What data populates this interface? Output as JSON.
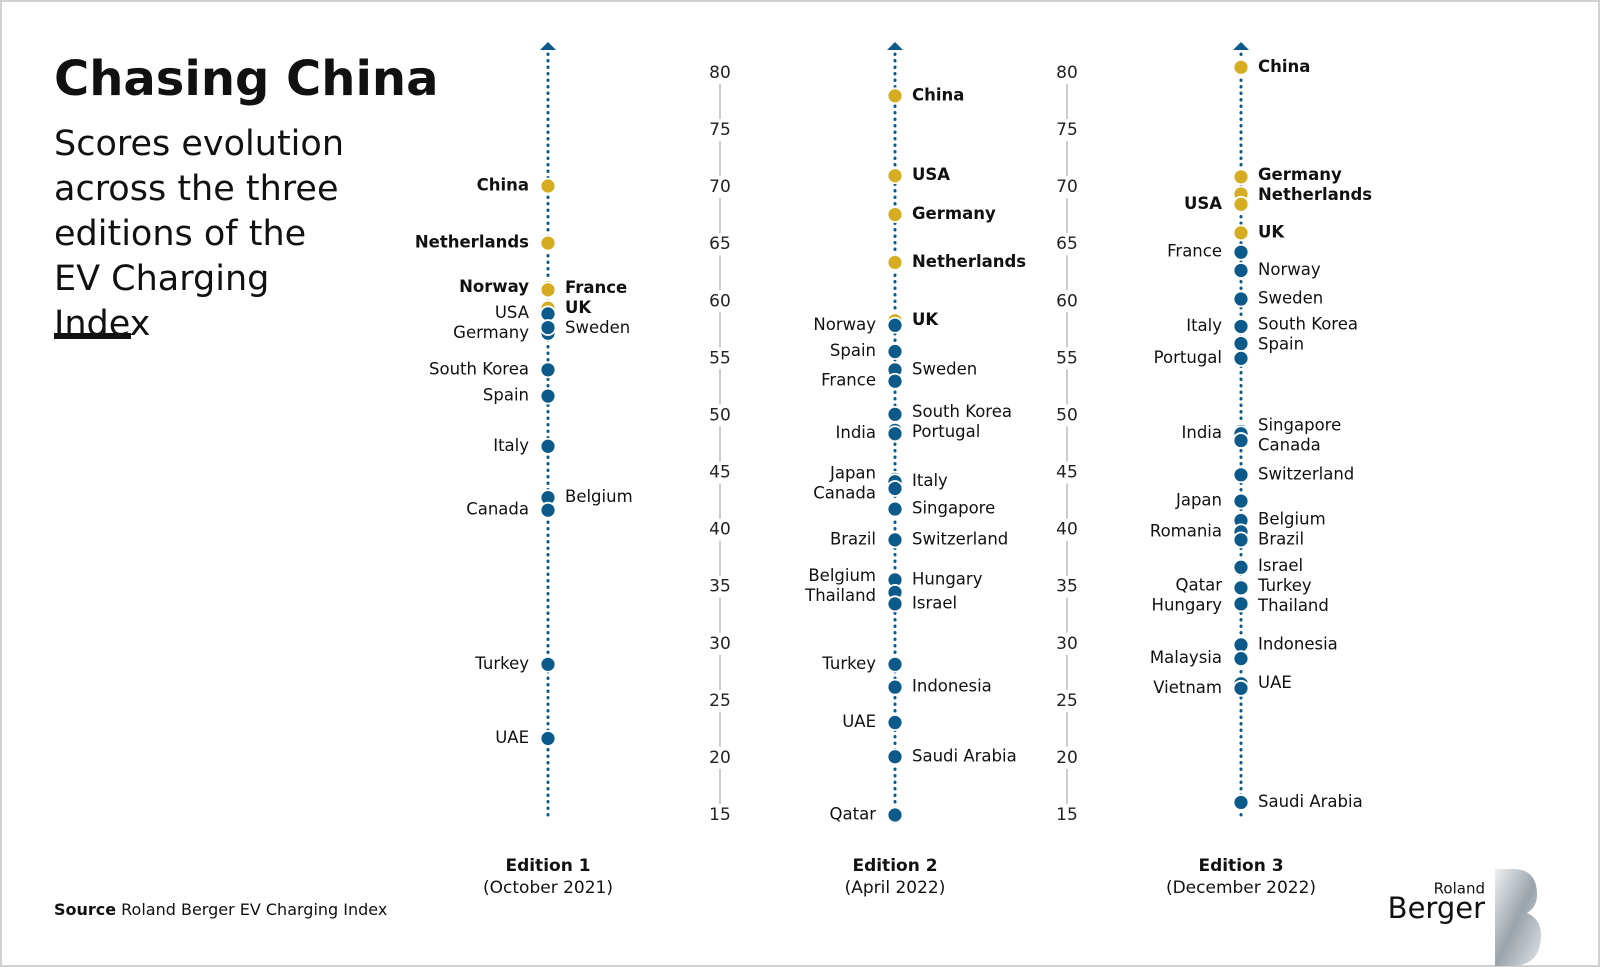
{
  "chart_data": {
    "type": "strip",
    "title": "Chasing China",
    "subtitle": "Scores evolution across the three editions of the EV Charging Index",
    "source_label": "Source",
    "source": "Roland Berger EV Charging Index",
    "ylim": [
      15,
      80
    ],
    "yticks": [
      15,
      20,
      25,
      30,
      35,
      40,
      45,
      50,
      55,
      60,
      65,
      70,
      75,
      80
    ],
    "highlight_color": "#d6ad22",
    "series": [
      {
        "name": "Edition 1",
        "subtitle": "(October 2021)",
        "categories": [
          "China",
          "Netherlands",
          "Norway",
          "France",
          "UK",
          "USA",
          "Germany",
          "Sweden",
          "South Korea",
          "Spain",
          "Italy",
          "Belgium",
          "Canada",
          "Turkey",
          "UAE"
        ],
        "values": [
          70.1,
          65.1,
          61.2,
          61.0,
          59.4,
          58.9,
          57.2,
          57.7,
          54.0,
          51.7,
          47.3,
          42.8,
          41.7,
          28.2,
          21.7
        ],
        "colors": [
          "#d6ad22",
          "#d6ad22",
          "#d6ad22",
          "#d6ad22",
          "#d6ad22",
          "#0b5a8a",
          "#0b5a8a",
          "#0b5a8a",
          "#0b5a8a",
          "#0b5a8a",
          "#0b5a8a",
          "#0b5a8a",
          "#0b5a8a",
          "#0b5a8a",
          "#0b5a8a"
        ],
        "sides": [
          "left",
          "left",
          "left",
          "right",
          "right",
          "left",
          "left",
          "right",
          "left",
          "left",
          "left",
          "right",
          "left",
          "left",
          "left"
        ]
      },
      {
        "name": "Edition 2",
        "subtitle": "(April 2022)",
        "categories": [
          "China",
          "USA",
          "Germany",
          "Netherlands",
          "UK",
          "Norway",
          "Spain",
          "Sweden",
          "France",
          "South Korea",
          "Portugal",
          "India",
          "Japan",
          "Italy",
          "Canada",
          "Singapore",
          "Brazil",
          "Switzerland",
          "Belgium",
          "Hungary",
          "Thailand",
          "Israel",
          "Turkey",
          "Indonesia",
          "UAE",
          "Saudi Arabia",
          "Qatar"
        ],
        "values": [
          78.0,
          71.0,
          67.6,
          63.4,
          58.3,
          57.9,
          55.6,
          54.0,
          53.0,
          50.1,
          48.7,
          48.4,
          44.4,
          44.2,
          43.6,
          41.8,
          39.1,
          39.1,
          35.5,
          35.6,
          34.5,
          33.5,
          28.2,
          26.2,
          23.1,
          20.1,
          15.0
        ],
        "colors": [
          "#d6ad22",
          "#d6ad22",
          "#d6ad22",
          "#d6ad22",
          "#d6ad22",
          "#0b5a8a",
          "#0b5a8a",
          "#0b5a8a",
          "#0b5a8a",
          "#0b5a8a",
          "#0b5a8a",
          "#0b5a8a",
          "#0b5a8a",
          "#0b5a8a",
          "#0b5a8a",
          "#0b5a8a",
          "#0b5a8a",
          "#0b5a8a",
          "#0b5a8a",
          "#0b5a8a",
          "#0b5a8a",
          "#0b5a8a",
          "#0b5a8a",
          "#0b5a8a",
          "#0b5a8a",
          "#0b5a8a",
          "#0b5a8a"
        ],
        "sides": [
          "right",
          "right",
          "right",
          "right",
          "right",
          "left",
          "left",
          "right",
          "left",
          "right",
          "right",
          "left",
          "left",
          "right",
          "left",
          "right",
          "left",
          "right",
          "left",
          "right",
          "left",
          "right",
          "left",
          "right",
          "left",
          "right",
          "left"
        ]
      },
      {
        "name": "Edition 3",
        "subtitle": "(December 2022)",
        "categories": [
          "China",
          "Germany",
          "Netherlands",
          "USA",
          "UK",
          "France",
          "Norway",
          "Sweden",
          "Italy",
          "South Korea",
          "Spain",
          "Portugal",
          "Singapore",
          "India",
          "Canada",
          "Switzerland",
          "Japan",
          "Belgium",
          "Romania",
          "Brazil",
          "Israel",
          "Turkey",
          "Qatar",
          "Thailand",
          "Hungary",
          "Indonesia",
          "Malaysia",
          "UAE",
          "Vietnam",
          "Saudi Arabia"
        ],
        "values": [
          80.5,
          70.9,
          69.4,
          68.5,
          66.0,
          64.3,
          62.7,
          60.2,
          57.8,
          57.8,
          56.3,
          55.0,
          48.6,
          48.4,
          47.8,
          44.8,
          42.5,
          40.8,
          39.8,
          39.1,
          36.7,
          34.9,
          34.9,
          33.5,
          33.5,
          29.9,
          28.7,
          26.5,
          26.1,
          16.1
        ],
        "colors": [
          "#d6ad22",
          "#d6ad22",
          "#d6ad22",
          "#d6ad22",
          "#d6ad22",
          "#0b5a8a",
          "#0b5a8a",
          "#0b5a8a",
          "#0b5a8a",
          "#0b5a8a",
          "#0b5a8a",
          "#0b5a8a",
          "#0b5a8a",
          "#0b5a8a",
          "#0b5a8a",
          "#0b5a8a",
          "#0b5a8a",
          "#0b5a8a",
          "#0b5a8a",
          "#0b5a8a",
          "#0b5a8a",
          "#0b5a8a",
          "#0b5a8a",
          "#0b5a8a",
          "#0b5a8a",
          "#0b5a8a",
          "#0b5a8a",
          "#0b5a8a",
          "#0b5a8a",
          "#0b5a8a"
        ],
        "sides": [
          "right",
          "right",
          "right",
          "left",
          "right",
          "left",
          "right",
          "right",
          "left",
          "right",
          "right",
          "left",
          "right",
          "left",
          "right",
          "right",
          "left",
          "right",
          "left",
          "right",
          "right",
          "right",
          "left",
          "right",
          "left",
          "right",
          "left",
          "right",
          "left",
          "right"
        ]
      }
    ]
  },
  "logo": {
    "line1": "Roland",
    "line2": "Berger"
  }
}
